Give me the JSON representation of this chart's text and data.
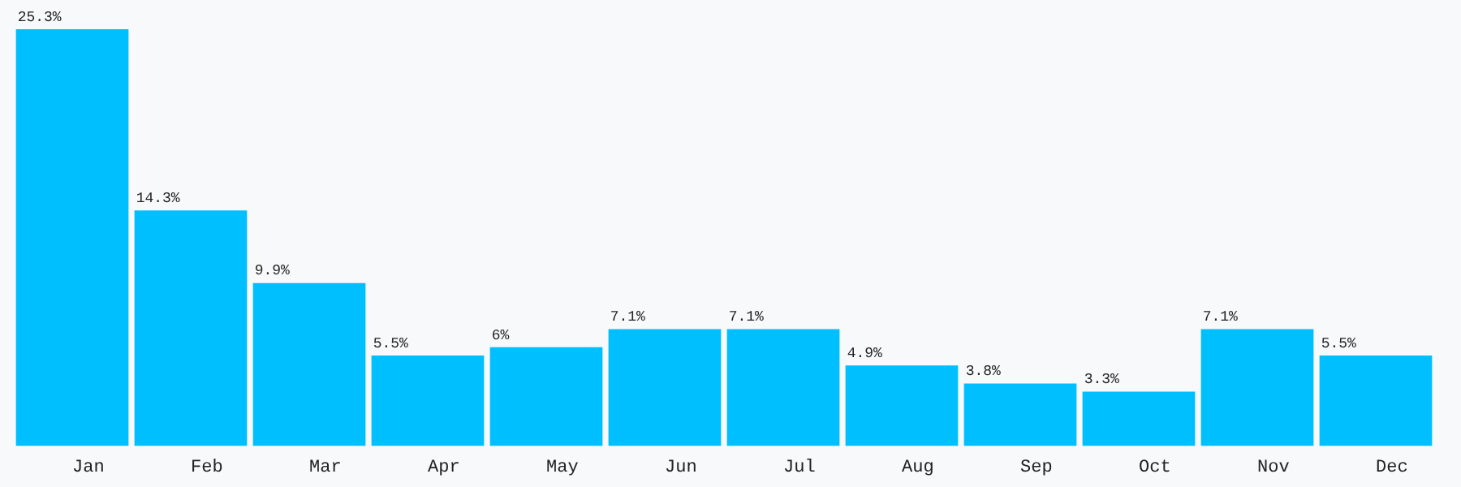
{
  "chart_data": {
    "type": "bar",
    "categories": [
      "Jan",
      "Feb",
      "Mar",
      "Apr",
      "May",
      "Jun",
      "Jul",
      "Aug",
      "Sep",
      "Oct",
      "Nov",
      "Dec"
    ],
    "values": [
      25.3,
      14.3,
      9.9,
      5.5,
      6,
      7.1,
      7.1,
      4.9,
      3.8,
      3.3,
      7.1,
      5.5
    ],
    "value_labels": [
      "25.3%",
      "14.3%",
      "9.9%",
      "5.5%",
      "6%",
      "7.1%",
      "7.1%",
      "4.9%",
      "3.8%",
      "3.3%",
      "7.1%",
      "5.5%"
    ],
    "color": "#00bfff",
    "grid": false,
    "legend": false,
    "tick_labels": "x"
  }
}
